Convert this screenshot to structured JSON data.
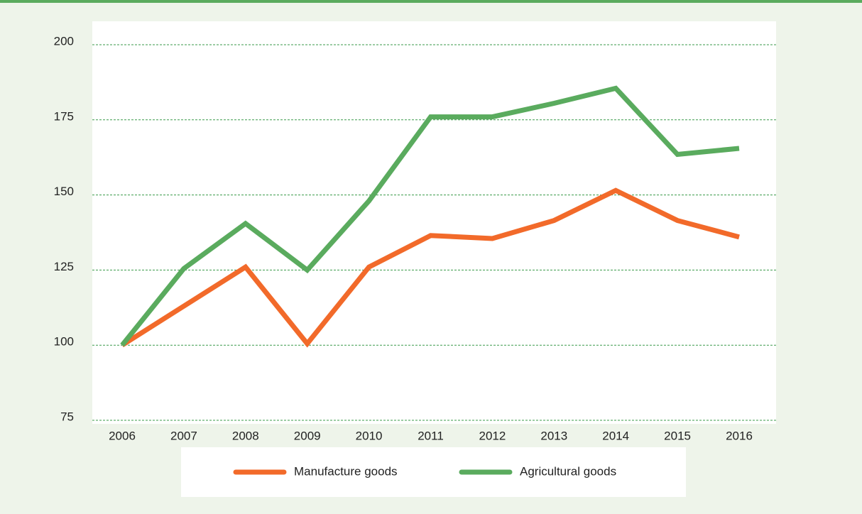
{
  "chart_data": {
    "type": "line",
    "categories": [
      "2006",
      "2007",
      "2008",
      "2009",
      "2010",
      "2011",
      "2012",
      "2013",
      "2014",
      "2015",
      "2016"
    ],
    "series": [
      {
        "name": "Manufacture goods",
        "color": "#f26a2a",
        "values": [
          100,
          113,
          126,
          100.5,
          126,
          136.5,
          135.5,
          141.5,
          151.5,
          141.5,
          136
        ]
      },
      {
        "name": "Agricultural goods",
        "color": "#5aab5e",
        "values": [
          100,
          125.5,
          140.5,
          125,
          148,
          176,
          176,
          180.5,
          185.5,
          163.5,
          165.5
        ]
      }
    ],
    "ylim": [
      75,
      200
    ],
    "yticks": [
      75,
      100,
      125,
      150,
      175,
      200
    ],
    "grid": true
  }
}
